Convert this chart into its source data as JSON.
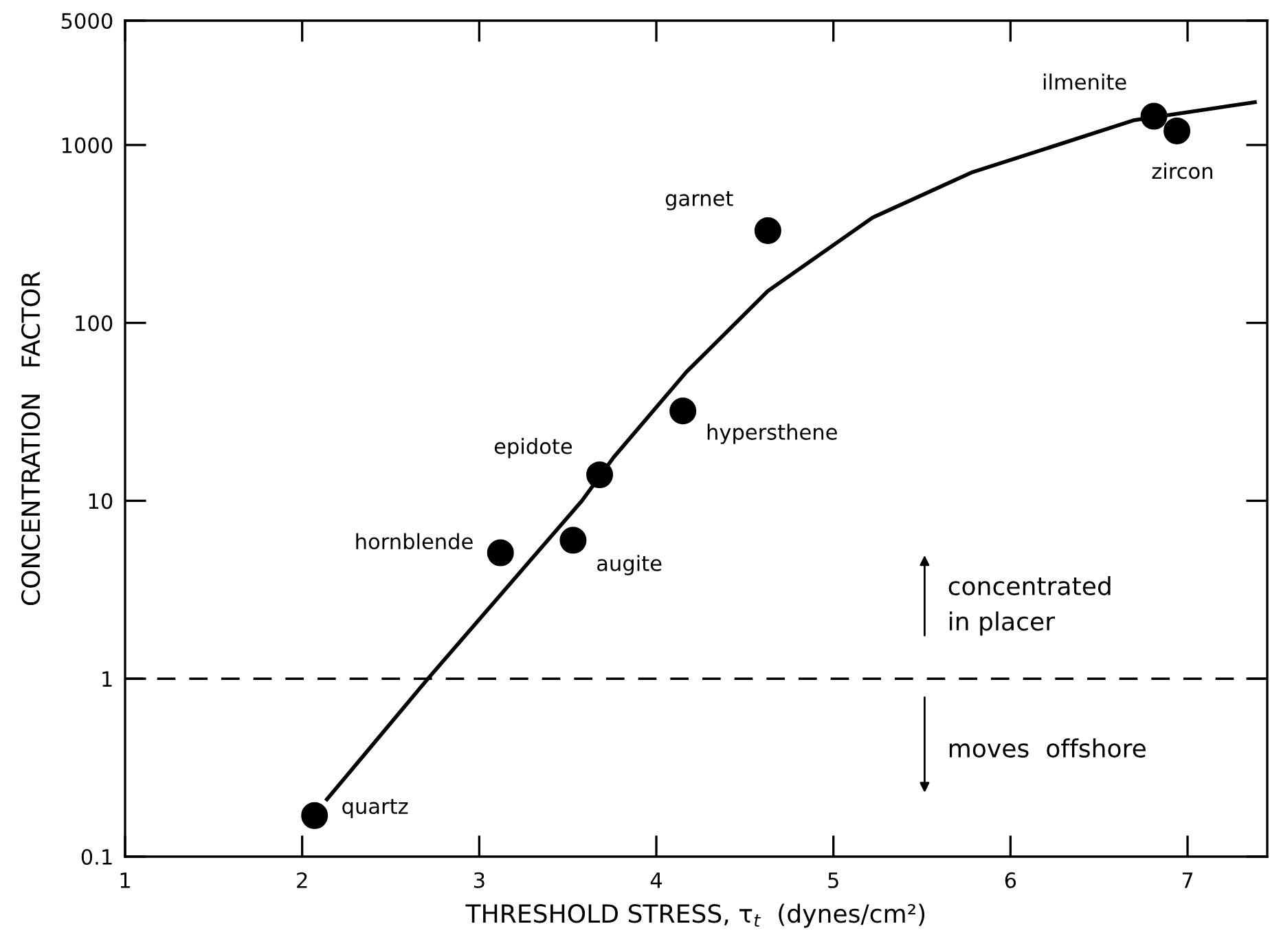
{
  "chart_data": {
    "type": "scatter",
    "xlabel": "THRESHOLD STRESS, τ$_{t}$  (dynes/cm²)",
    "ylabel": "CONCENTRATION   FACTOR",
    "xlim": [
      1,
      7.45
    ],
    "ylim": [
      0.1,
      5000
    ],
    "log": "y",
    "xticks": [
      1,
      2,
      3,
      4,
      5,
      6,
      7
    ],
    "yticks": [
      0.1,
      1,
      10,
      100,
      1000,
      5000
    ],
    "grid": false,
    "legend": false,
    "series": [
      {
        "marker": "circle",
        "color": "#000000",
        "x": [
          2.07,
          3.12,
          3.53,
          3.68,
          4.15,
          4.63,
          6.81,
          6.94
        ],
        "values": [
          0.17,
          5.1,
          6.0,
          14,
          32,
          330,
          1450,
          1200
        ]
      },
      {
        "type": "line",
        "color": "#000000",
        "x": [
          2.14,
          2.71,
          3.58,
          3.76,
          4.17,
          4.63,
          5.22,
          5.78,
          6.7,
          7.38
        ],
        "values": [
          0.21,
          1,
          10,
          17.6,
          53,
          151,
          390,
          700,
          1380,
          1740
        ]
      }
    ],
    "ref_lines": [
      {
        "axis": "y",
        "value": 1,
        "line_style": "dashed",
        "color": "#000000"
      }
    ],
    "annotations": [
      {
        "text": "quartz",
        "x": 2.07,
        "y": 0.17
      },
      {
        "text": "hornblende",
        "x": 3.12,
        "y": 5.1
      },
      {
        "text": "augite",
        "x": 3.53,
        "y": 6.0
      },
      {
        "text": "epidote",
        "x": 3.68,
        "y": 14
      },
      {
        "text": "hypersthene",
        "x": 4.15,
        "y": 32
      },
      {
        "text": "garnet",
        "x": 4.63,
        "y": 330
      },
      {
        "text": "ilmenite",
        "x": 6.81,
        "y": 1450
      },
      {
        "text": "zircon",
        "x": 6.94,
        "y": 1200
      },
      "concentrated\nin placer",
      "moves  offshore"
    ]
  }
}
